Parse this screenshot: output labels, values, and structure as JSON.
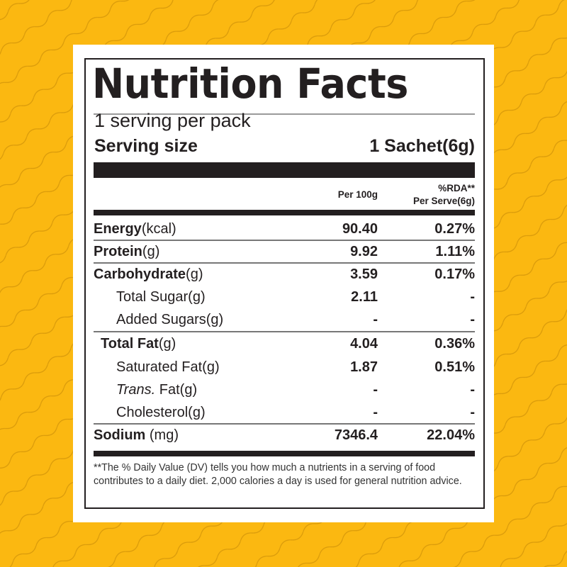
{
  "background_color": "#fbb811",
  "title": "Nutrition Facts",
  "servings_per_pack": "1 serving per pack",
  "serving_size_label": "Serving size",
  "serving_size_value": "1 Sachet(6g)",
  "columns": {
    "per100": "Per 100g",
    "rda_line1": "%RDA**",
    "rda_line2": "Per Serve(6g)"
  },
  "rows": [
    {
      "bold": "Energy",
      "unit": "(kcal)",
      "per100": "90.40",
      "rda": "0.27%"
    },
    {
      "bold": "Protein",
      "unit": "(g)",
      "per100": "9.92",
      "rda": "1.11%"
    },
    {
      "bold": "Carbohydrate",
      "unit": "(g)",
      "per100": "3.59",
      "rda": "0.17%"
    },
    {
      "bold": "",
      "unit": "Total Sugar(g)",
      "per100": "2.11",
      "rda": "-"
    },
    {
      "bold": "",
      "unit": "Added Sugars(g)",
      "per100": "-",
      "rda": "-"
    },
    {
      "bold": "Total Fat",
      "unit": "(g)",
      "per100": "4.04",
      "rda": "0.36%"
    },
    {
      "bold": "",
      "unit": "Saturated Fat(g)",
      "per100": "1.87",
      "rda": "0.51%"
    },
    {
      "italic": "Trans.",
      "unit": " Fat(g)",
      "per100": "-",
      "rda": "-"
    },
    {
      "bold": "",
      "unit": "Cholesterol(g)",
      "per100": "-",
      "rda": "-"
    },
    {
      "bold": "Sodium",
      "unit": " (mg)",
      "per100": "7346.4",
      "rda": "22.04%"
    }
  ],
  "footnote": "**The % Daily Value (DV) tells you how much a nutrients in a serving of food contributes to a daily diet. 2,000 calories a day is used for general nutrition advice."
}
